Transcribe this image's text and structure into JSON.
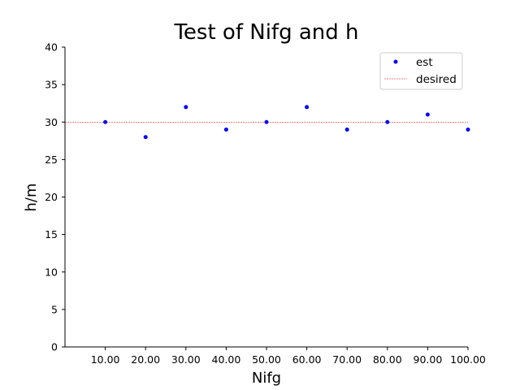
{
  "chart_data": {
    "type": "scatter",
    "title": "Test of Nifg and h",
    "xlabel": "Nifg",
    "ylabel": "h/m",
    "x": [
      10,
      20,
      30,
      40,
      50,
      60,
      70,
      80,
      90,
      100
    ],
    "x_tick_labels": [
      "10.00",
      "20.00",
      "30.00",
      "40.00",
      "50.00",
      "60.00",
      "70.00",
      "80.00",
      "90.00",
      "100.00"
    ],
    "y_ticks": [
      "0",
      "5",
      "10",
      "15",
      "20",
      "25",
      "30",
      "35",
      "40"
    ],
    "xlim": [
      0,
      100
    ],
    "ylim": [
      0,
      40
    ],
    "series": [
      {
        "name": "est",
        "kind": "points",
        "color": "#0000ff",
        "values": [
          30,
          28,
          32,
          29,
          30,
          32,
          29,
          30,
          31,
          29
        ]
      },
      {
        "name": "desired",
        "kind": "dashed-hline",
        "color": "#ff0000",
        "value": 30
      }
    ],
    "grid": false,
    "legend_position": "upper-right"
  }
}
